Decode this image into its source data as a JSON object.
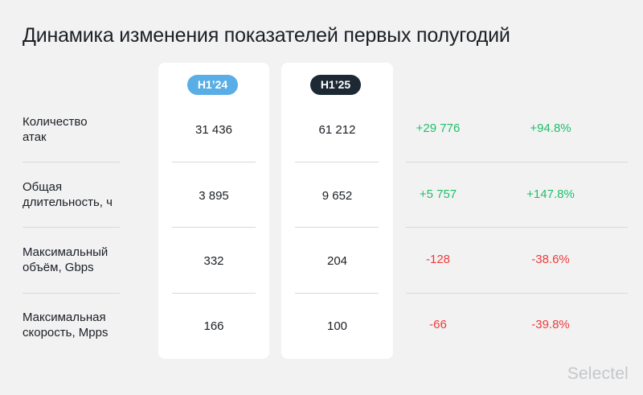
{
  "title": "Динамика изменения показателей первых полугодий",
  "brand": "Selectel",
  "colors": {
    "h1_24_pill": "#5aaee6",
    "h1_25_pill": "#1c2833",
    "positive": "#1fbf69",
    "negative": "#ee3b3b"
  },
  "chart_data": {
    "type": "table",
    "title": "Динамика изменения показателей первых полугодий",
    "columns": [
      "H1’24",
      "H1’25"
    ],
    "rows": [
      {
        "label_line1": "Количество",
        "label_line2": "атак",
        "h1_24": "31 436",
        "h1_25": "61 212",
        "delta_abs": "+29 776",
        "delta_pct": "+94.8%"
      },
      {
        "label_line1": "Общая",
        "label_line2": "длительность, ч",
        "h1_24": "3 895",
        "h1_25": "9 652",
        "delta_abs": "+5 757",
        "delta_pct": "+147.8%"
      },
      {
        "label_line1": "Максимальный",
        "label_line2": "объём, Gbps",
        "h1_24": "332",
        "h1_25": "204",
        "delta_abs": "-128",
        "delta_pct": "-38.6%"
      },
      {
        "label_line1": "Максимальная",
        "label_line2": "скорость, Mpps",
        "h1_24": "166",
        "h1_25": "100",
        "delta_abs": "-66",
        "delta_pct": "-39.8%"
      }
    ]
  }
}
